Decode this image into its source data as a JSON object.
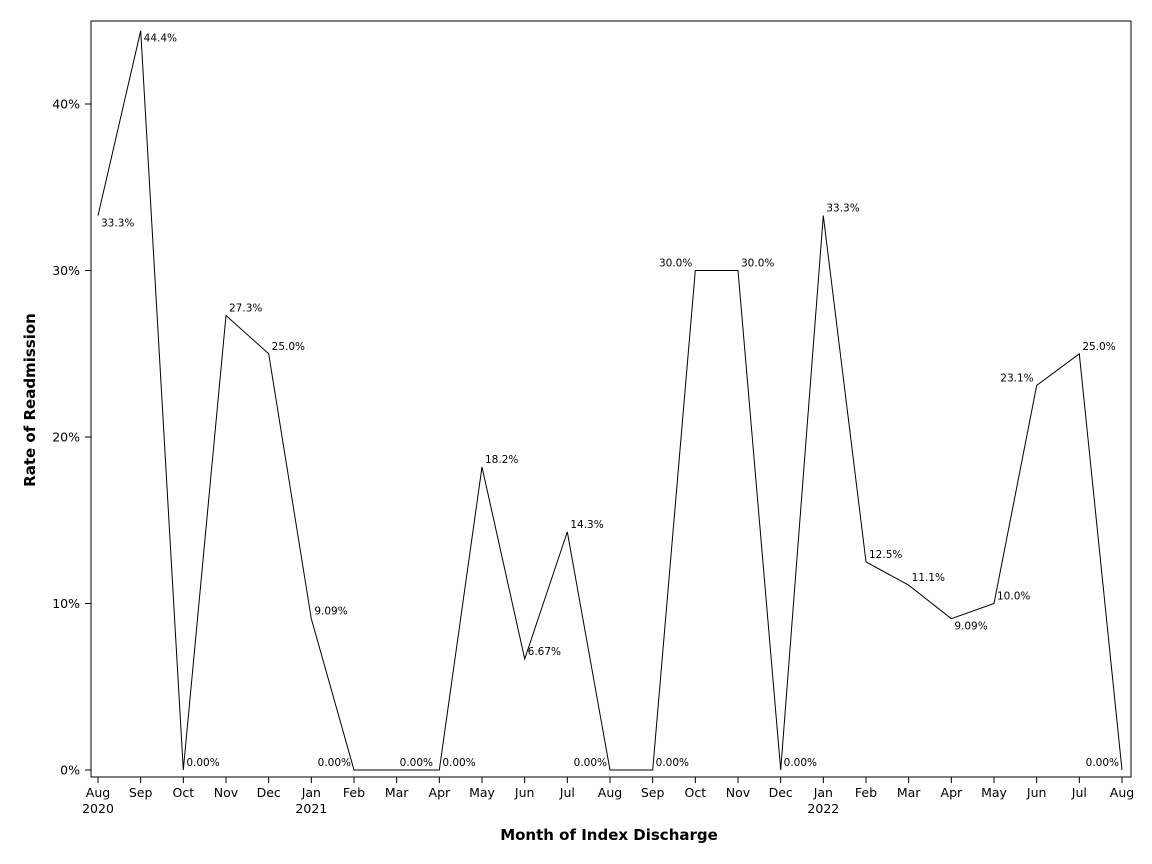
{
  "chart_data": {
    "type": "line",
    "title": "",
    "xlabel": "Month of Index Discharge",
    "ylabel": "Rate of Readmission",
    "ylim": [
      0,
      45
    ],
    "yticks": [
      "0%",
      "10%",
      "20%",
      "30%",
      "40%"
    ],
    "ytick_values": [
      0,
      10,
      20,
      30,
      40
    ],
    "grid": false,
    "legend": "none",
    "line_color": "#000000",
    "categories": [
      "Aug 2020",
      "Sep",
      "Oct",
      "Nov",
      "Dec",
      "Jan 2021",
      "Feb",
      "Mar",
      "Apr",
      "May",
      "Jun",
      "Jul",
      "Aug",
      "Sep",
      "Oct",
      "Nov",
      "Dec",
      "Jan 2022",
      "Feb",
      "Mar",
      "Apr",
      "May",
      "Jun",
      "Jul",
      "Aug"
    ],
    "month_labels": [
      "Aug",
      "Sep",
      "Oct",
      "Nov",
      "Dec",
      "Jan",
      "Feb",
      "Mar",
      "Apr",
      "May",
      "Jun",
      "Jul",
      "Aug",
      "Sep",
      "Oct",
      "Nov",
      "Dec",
      "Jan",
      "Feb",
      "Mar",
      "Apr",
      "May",
      "Jun",
      "Jul",
      "Aug"
    ],
    "year_labels": [
      {
        "index": 0,
        "text": "2020"
      },
      {
        "index": 5,
        "text": "2021"
      },
      {
        "index": 17,
        "text": "2022"
      }
    ],
    "series": [
      {
        "values": [
          33.3,
          44.4,
          0,
          27.3,
          25.0,
          9.09,
          0,
          0,
          0,
          18.2,
          6.67,
          14.3,
          0,
          0,
          30.0,
          30.0,
          0,
          33.3,
          12.5,
          11.1,
          9.09,
          10.0,
          23.1,
          25.0,
          0
        ],
        "labels": [
          "33.3%",
          "44.4%",
          "0.00%",
          "27.3%",
          "25.0%",
          "9.09%",
          "0.00%",
          "0.00%",
          "0.00%",
          "18.2%",
          "6.67%",
          "14.3%",
          "0.00%",
          "0.00%",
          "30.0%",
          "30.0%",
          "0.00%",
          "33.3%",
          "12.5%",
          "11.1%",
          "9.09%",
          "10.0%",
          "23.1%",
          "25.0%",
          "0.00%"
        ]
      }
    ]
  }
}
